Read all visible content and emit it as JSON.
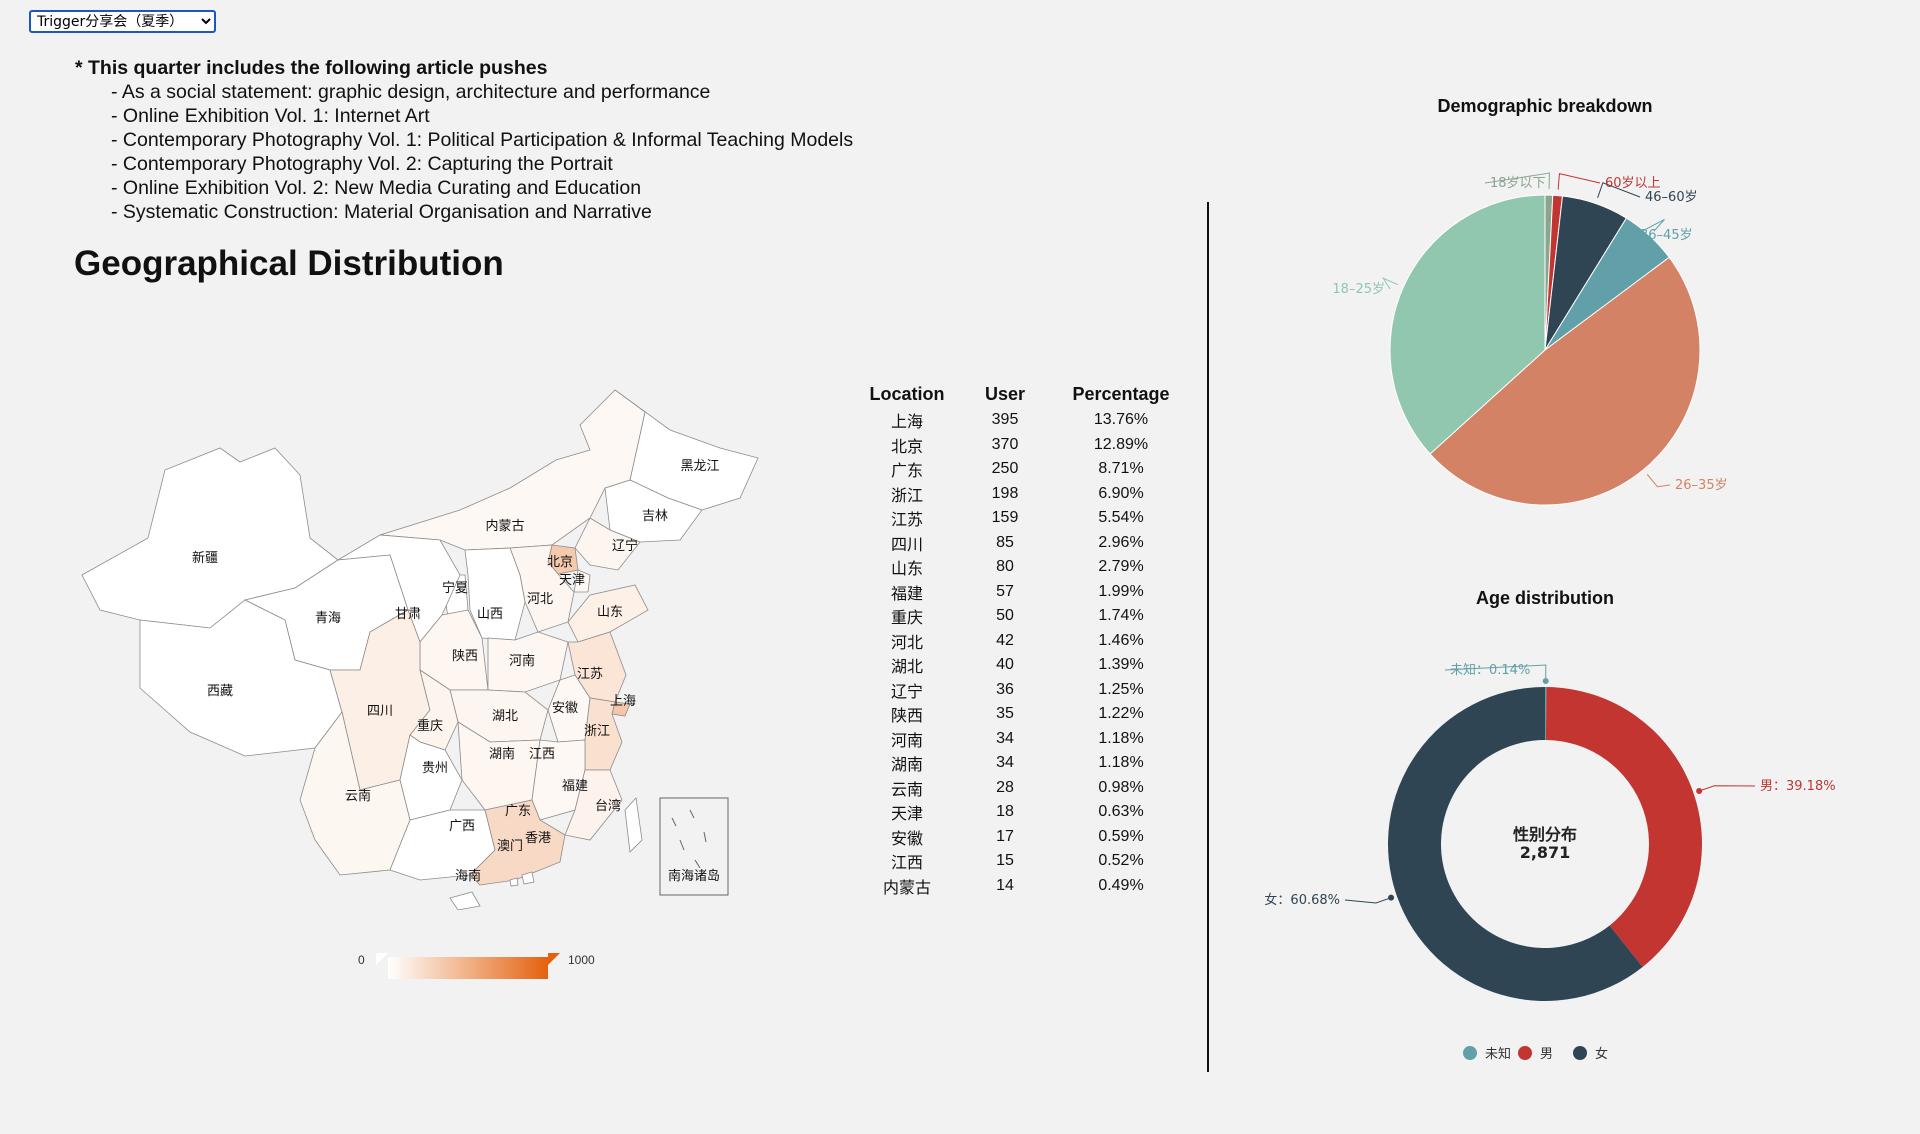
{
  "dropdown": {
    "selected": "Trigger分享会（夏季）"
  },
  "intro": {
    "lead": "* This quarter includes the following article pushes",
    "items": [
      "- As a social statement: graphic design, architecture and performance",
      "- Online Exhibition Vol. 1: Internet Art",
      "- Contemporary Photography Vol. 1: Political Participation & Informal Teaching Models",
      "- Contemporary Photography Vol. 2: Capturing the Portrait",
      "- Online Exhibition Vol. 2: New Media Curating and Education",
      "- Systematic Construction: Material Organisation and Narrative"
    ]
  },
  "geo_title": "Geographical Distribution",
  "table": {
    "headers": [
      "Location",
      "User",
      "Percentage"
    ],
    "rows": [
      [
        "上海",
        "395",
        "13.76%"
      ],
      [
        "北京",
        "370",
        "12.89%"
      ],
      [
        "广东",
        "250",
        "8.71%"
      ],
      [
        "浙江",
        "198",
        "6.90%"
      ],
      [
        "江苏",
        "159",
        "5.54%"
      ],
      [
        "四川",
        "85",
        "2.96%"
      ],
      [
        "山东",
        "80",
        "2.79%"
      ],
      [
        "福建",
        "57",
        "1.99%"
      ],
      [
        "重庆",
        "50",
        "1.74%"
      ],
      [
        "河北",
        "42",
        "1.46%"
      ],
      [
        "湖北",
        "40",
        "1.39%"
      ],
      [
        "辽宁",
        "36",
        "1.25%"
      ],
      [
        "陕西",
        "35",
        "1.22%"
      ],
      [
        "河南",
        "34",
        "1.18%"
      ],
      [
        "湖南",
        "34",
        "1.18%"
      ],
      [
        "云南",
        "28",
        "0.98%"
      ],
      [
        "天津",
        "18",
        "0.63%"
      ],
      [
        "安徽",
        "17",
        "0.59%"
      ],
      [
        "江西",
        "15",
        "0.52%"
      ],
      [
        "内蒙古",
        "14",
        "0.49%"
      ]
    ]
  },
  "colors": {
    "map_max": "#e3620f",
    "map_min": "#ffffff",
    "age_colors": [
      "#8ba58f",
      "#c23531",
      "#2f4554",
      "#61a0a8",
      "#d48265",
      "#91c7ae"
    ],
    "gender_colors": [
      "#61a0a8",
      "#c23531",
      "#2f4554"
    ]
  },
  "chart_data": [
    {
      "type": "map",
      "region": "China provinces",
      "value_range": [
        0,
        1000
      ],
      "legend_min": "0",
      "legend_max": "1000",
      "labels": [
        "黑龙江",
        "吉林",
        "辽宁",
        "内蒙古",
        "北京",
        "天津",
        "河北",
        "山西",
        "山东",
        "宁夏",
        "甘肃",
        "新疆",
        "青海",
        "西藏",
        "陕西",
        "河南",
        "江苏",
        "上海",
        "安徽",
        "湖北",
        "四川",
        "重庆",
        "浙江",
        "湖南",
        "江西",
        "贵州",
        "福建",
        "云南",
        "广西",
        "广东",
        "台湾",
        "香港",
        "澳门",
        "海南",
        "南海诸岛"
      ],
      "values": {
        "上海": 395,
        "北京": 370,
        "广东": 250,
        "浙江": 198,
        "江苏": 159,
        "四川": 85,
        "山东": 80,
        "福建": 57,
        "重庆": 50,
        "河北": 42,
        "湖北": 40,
        "辽宁": 36,
        "陕西": 35,
        "河南": 34,
        "湖南": 34,
        "云南": 28,
        "天津": 18,
        "安徽": 17,
        "江西": 15,
        "内蒙古": 14
      }
    },
    {
      "type": "pie",
      "title": "Demographic breakdown",
      "categories": [
        "18岁以下",
        "60岁以上",
        "46–60岁",
        "36–45岁",
        "26–35岁",
        "18–25岁"
      ],
      "values": [
        0.8,
        1.0,
        7.0,
        6.0,
        48.5,
        36.7
      ]
    },
    {
      "type": "pie",
      "title": "Age distribution",
      "center_title": "性别分布",
      "center_value": "2,871",
      "categories": [
        "未知",
        "男",
        "女"
      ],
      "values": [
        0.14,
        39.18,
        60.68
      ],
      "labels": [
        "未知：0.14%",
        "男：39.18%",
        "女：60.68%"
      ],
      "legend_placement": "bottom"
    }
  ]
}
